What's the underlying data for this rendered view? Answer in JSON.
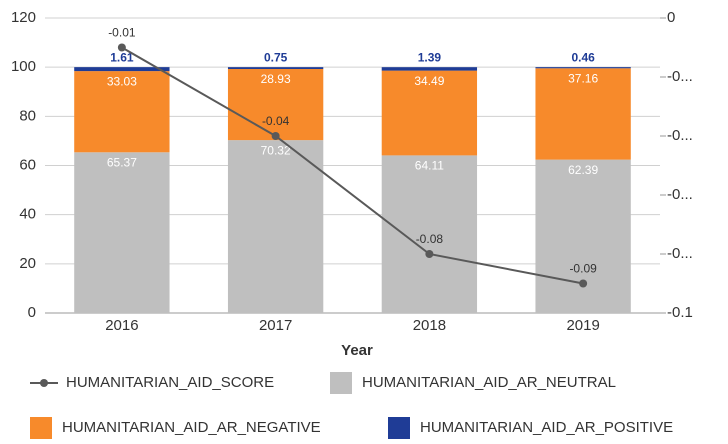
{
  "chart_data": {
    "type": "bar",
    "x_label": "Year",
    "categories": [
      "2016",
      "2017",
      "2018",
      "2019"
    ],
    "series": [
      {
        "name": "HUMANITARIAN_AID_AR_NEUTRAL",
        "color": "#bfbfbf",
        "values": [
          65.37,
          70.32,
          64.11,
          62.39
        ]
      },
      {
        "name": "HUMANITARIAN_AID_AR_NEGATIVE",
        "color": "#f78a2b",
        "values": [
          33.03,
          28.93,
          34.49,
          37.16
        ]
      },
      {
        "name": "HUMANITARIAN_AID_AR_POSITIVE",
        "color": "#1f3c96",
        "values": [
          1.61,
          0.75,
          1.39,
          0.46
        ]
      },
      {
        "name": "HUMANITARIAN_AID_SCORE",
        "color": "#595959",
        "type": "line",
        "axis": "y2",
        "values": [
          -0.01,
          -0.04,
          -0.08,
          -0.09
        ]
      }
    ],
    "ylim": [
      0,
      120
    ],
    "yticks": [
      0,
      20,
      40,
      60,
      80,
      100,
      120
    ],
    "y2lim": [
      -0.1,
      0
    ],
    "y2ticks": [
      {
        "value": -0.1,
        "label": "-0.1"
      },
      {
        "value": -0.08,
        "label": "-0..."
      },
      {
        "value": -0.06,
        "label": "-0..."
      },
      {
        "value": -0.04,
        "label": "-0..."
      },
      {
        "value": -0.02,
        "label": "-0..."
      },
      0
    ],
    "stacked": true,
    "grid": true
  }
}
